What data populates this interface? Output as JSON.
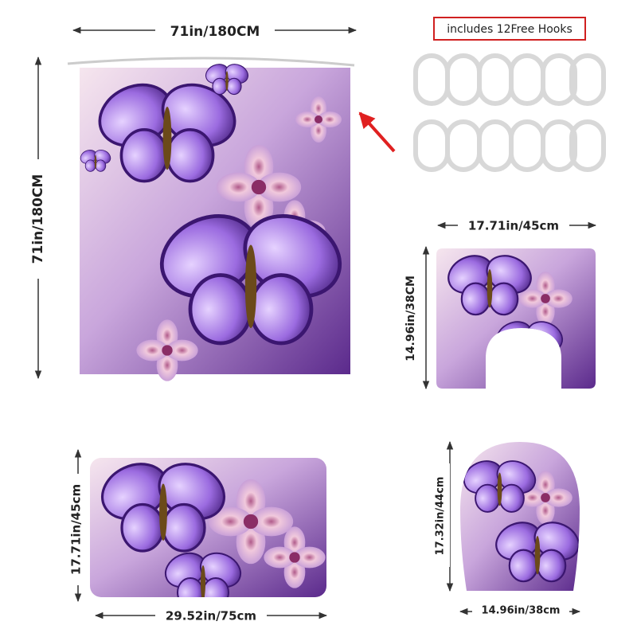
{
  "curtain": {
    "width_label": "71in/180CM",
    "height_label": "71in/180CM"
  },
  "hooks": {
    "label": "includes 12Free Hooks"
  },
  "contour_mat": {
    "width_label": "17.71in/45cm",
    "height_label": "14.96in/38CM"
  },
  "bath_mat": {
    "height_label": "17.71in/45cm",
    "width_label": "29.52in/75cm"
  },
  "lid_cover": {
    "height_label": "17.32in/44cm",
    "width_label": "14.96in/38cm"
  }
}
